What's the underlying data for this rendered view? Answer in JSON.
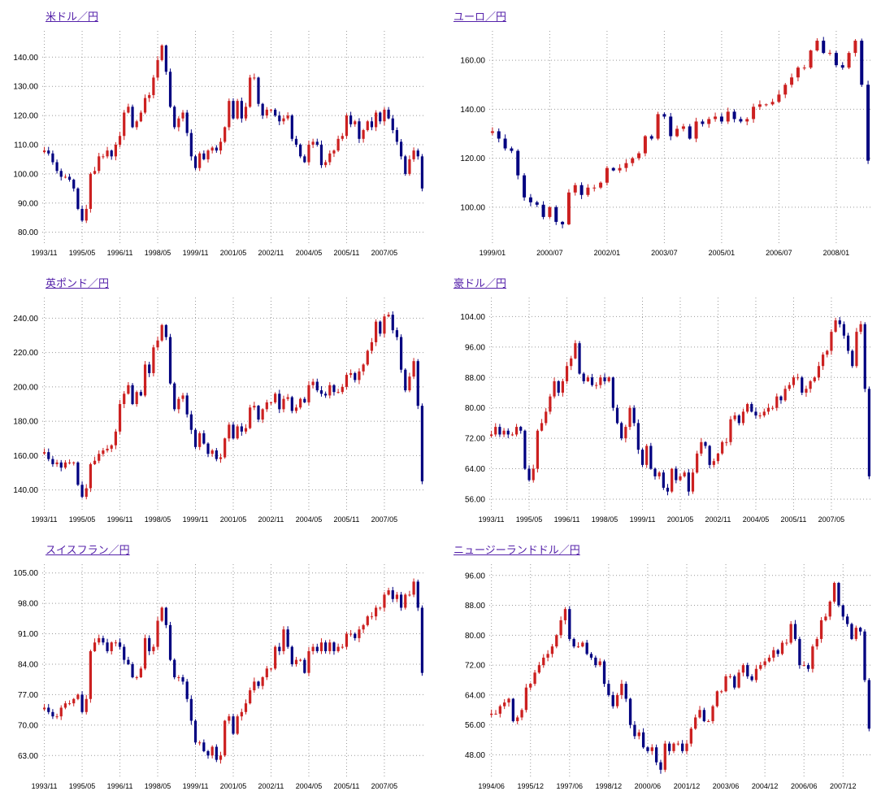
{
  "colors": {
    "up_candle": "#cc2020",
    "down_candle": "#000080",
    "grid": "#999999",
    "title": "#5522aa",
    "axis_text": "#000000",
    "background": "#ffffff"
  },
  "chart_data": [
    {
      "type": "candlestick",
      "title": "米ドル／円",
      "ylabel": "",
      "xlabel": "",
      "y_ticks": [
        140,
        130,
        120,
        110,
        100,
        90,
        80
      ],
      "y_min": 76,
      "y_max": 149,
      "x_labels": [
        "1993/11",
        "1995/05",
        "1996/11",
        "1998/05",
        "1999/11",
        "2001/05",
        "2002/11",
        "2004/05",
        "2005/11",
        "2007/05"
      ],
      "label_every": 9,
      "x_start": "1993/11",
      "x_interval_months": 2,
      "closes": [
        108,
        107,
        104,
        101,
        99,
        99,
        98,
        95,
        88,
        84,
        88,
        100,
        101,
        106,
        106,
        108,
        106,
        110,
        113,
        121,
        123,
        116,
        118,
        121,
        126,
        127,
        133,
        139,
        144,
        135,
        123,
        116,
        119,
        121,
        114,
        106,
        102,
        107,
        105,
        108,
        109,
        108,
        111,
        116,
        125,
        119,
        125,
        119,
        123,
        133,
        133,
        124,
        120,
        122,
        122,
        120,
        118,
        119,
        120,
        112,
        110,
        106,
        104,
        110,
        111,
        110,
        103,
        104,
        107,
        108,
        112,
        113,
        120,
        117,
        118,
        112,
        115,
        118,
        116,
        121,
        118,
        122,
        119,
        115,
        111,
        106,
        100,
        105,
        108,
        106,
        95
      ]
    },
    {
      "type": "candlestick",
      "title": "ユーロ／円",
      "ylabel": "",
      "xlabel": "",
      "y_ticks": [
        160,
        140,
        120,
        100
      ],
      "y_min": 85,
      "y_max": 172,
      "x_labels": [
        "1999/01",
        "2000/07",
        "2002/01",
        "2003/07",
        "2005/01",
        "2006/07",
        "2008/01"
      ],
      "label_every": 9,
      "x_start": "1999/01",
      "x_interval_months": 2,
      "closes": [
        131,
        128,
        124,
        123,
        113,
        104,
        102,
        101,
        96,
        100,
        94,
        93,
        106,
        109,
        105,
        108,
        108,
        110,
        116,
        115,
        116,
        118,
        120,
        122,
        129,
        128,
        138,
        137,
        129,
        132,
        133,
        128,
        135,
        134,
        136,
        137,
        135,
        139,
        136,
        135,
        136,
        141,
        142,
        142,
        143,
        146,
        150,
        153,
        157,
        157,
        164,
        168,
        163,
        163,
        158,
        157,
        163,
        168,
        150,
        119
      ]
    },
    {
      "type": "candlestick",
      "title": "英ポンド／円",
      "ylabel": "",
      "xlabel": "",
      "y_ticks": [
        240,
        220,
        200,
        180,
        160,
        140
      ],
      "y_min": 128,
      "y_max": 252,
      "x_labels": [
        "1993/11",
        "1995/05",
        "1996/11",
        "1998/05",
        "1999/11",
        "2001/05",
        "2002/11",
        "2004/05",
        "2005/11",
        "2007/05"
      ],
      "label_every": 9,
      "x_start": "1993/11",
      "x_interval_months": 2,
      "closes": [
        162,
        158,
        155,
        156,
        153,
        156,
        156,
        156,
        143,
        136,
        141,
        155,
        157,
        161,
        163,
        164,
        166,
        174,
        190,
        196,
        201,
        190,
        197,
        195,
        213,
        208,
        223,
        227,
        236,
        229,
        202,
        187,
        193,
        195,
        184,
        175,
        165,
        173,
        167,
        161,
        163,
        158,
        159,
        170,
        178,
        170,
        177,
        174,
        176,
        188,
        189,
        181,
        187,
        191,
        191,
        196,
        187,
        193,
        194,
        186,
        188,
        193,
        191,
        201,
        203,
        198,
        196,
        195,
        201,
        197,
        197,
        200,
        207,
        208,
        204,
        209,
        213,
        221,
        226,
        238,
        231,
        241,
        242,
        233,
        229,
        210,
        198,
        206,
        215,
        189,
        145
      ]
    },
    {
      "type": "candlestick",
      "title": "豪ドル／円",
      "ylabel": "",
      "xlabel": "",
      "y_ticks": [
        104,
        96,
        88,
        80,
        72,
        64,
        56
      ],
      "y_min": 53,
      "y_max": 109,
      "x_labels": [
        "1993/11",
        "1995/05",
        "1996/11",
        "1998/05",
        "1999/11",
        "2001/05",
        "2002/11",
        "2004/05",
        "2005/11",
        "2007/05"
      ],
      "label_every": 9,
      "x_start": "1993/11",
      "x_interval_months": 2,
      "closes": [
        73,
        75,
        73,
        74,
        73,
        73,
        75,
        74,
        64,
        61,
        64,
        74,
        76,
        79,
        83,
        87,
        84,
        87,
        91,
        93,
        97,
        89,
        87,
        88,
        86,
        86,
        88,
        87,
        88,
        80,
        76,
        72,
        75,
        80,
        76,
        69,
        65,
        70,
        64,
        62,
        63,
        59,
        58,
        64,
        61,
        62,
        63,
        58,
        63,
        68,
        71,
        70,
        65,
        66,
        68,
        71,
        71,
        77,
        78,
        76,
        79,
        81,
        79,
        78,
        78,
        79,
        80,
        80,
        83,
        82,
        85,
        86,
        88,
        88,
        84,
        85,
        87,
        88,
        91,
        94,
        95,
        100,
        103,
        102,
        99,
        95,
        91,
        100,
        102,
        85,
        62
      ]
    },
    {
      "type": "candlestick",
      "title": "スイスフラン／円",
      "ylabel": "",
      "xlabel": "",
      "y_ticks": [
        105,
        98,
        91,
        84,
        77,
        70,
        63
      ],
      "y_min": 58,
      "y_max": 107,
      "x_labels": [
        "1993/11",
        "1995/05",
        "1996/11",
        "1998/05",
        "1999/11",
        "2001/05",
        "2002/11",
        "2004/05",
        "2005/11",
        "2007/05"
      ],
      "label_every": 9,
      "x_start": "1993/11",
      "x_interval_months": 2,
      "closes": [
        74,
        73,
        72,
        72,
        74,
        75,
        75,
        76,
        77,
        73,
        76,
        87,
        89,
        90,
        89,
        87,
        89,
        89,
        88,
        85,
        84,
        81,
        81,
        83,
        90,
        87,
        88,
        94,
        97,
        93,
        85,
        81,
        81,
        80,
        76,
        71,
        66,
        66,
        64,
        63,
        65,
        62,
        63,
        71,
        72,
        68,
        72,
        73,
        75,
        78,
        80,
        79,
        81,
        83,
        83,
        88,
        87,
        92,
        88,
        84,
        85,
        85,
        82,
        87,
        88,
        87,
        89,
        87,
        89,
        87,
        88,
        88,
        91,
        91,
        90,
        92,
        93,
        95,
        95,
        97,
        97,
        100,
        101,
        99,
        100,
        97,
        100,
        100,
        103,
        97,
        82
      ]
    },
    {
      "type": "candlestick",
      "title": "ニュージーランドドル／円",
      "ylabel": "",
      "xlabel": "",
      "y_ticks": [
        96,
        88,
        80,
        72,
        64,
        56,
        48
      ],
      "y_min": 42,
      "y_max": 99,
      "x_labels": [
        "1994/06",
        "1995/12",
        "1997/06",
        "1998/12",
        "2000/06",
        "2001/12",
        "2003/06",
        "2004/12",
        "2006/06",
        "2007/12"
      ],
      "label_every": 9,
      "x_start": "1994/06",
      "x_interval_months": 2,
      "closes": [
        59,
        59,
        61,
        62,
        63,
        57,
        58,
        60,
        66,
        67,
        70,
        72,
        74,
        75,
        77,
        80,
        84,
        87,
        79,
        77,
        77,
        78,
        75,
        74,
        72,
        73,
        67,
        64,
        61,
        64,
        67,
        63,
        56,
        53,
        54,
        50,
        49,
        50,
        46,
        44,
        51,
        49,
        51,
        51,
        49,
        51,
        55,
        58,
        60,
        57,
        57,
        61,
        65,
        65,
        69,
        69,
        66,
        70,
        72,
        69,
        68,
        71,
        72,
        73,
        74,
        76,
        75,
        78,
        78,
        83,
        79,
        72,
        72,
        71,
        77,
        79,
        84,
        85,
        89,
        94,
        88,
        85,
        83,
        79,
        82,
        81,
        68,
        55
      ]
    }
  ]
}
